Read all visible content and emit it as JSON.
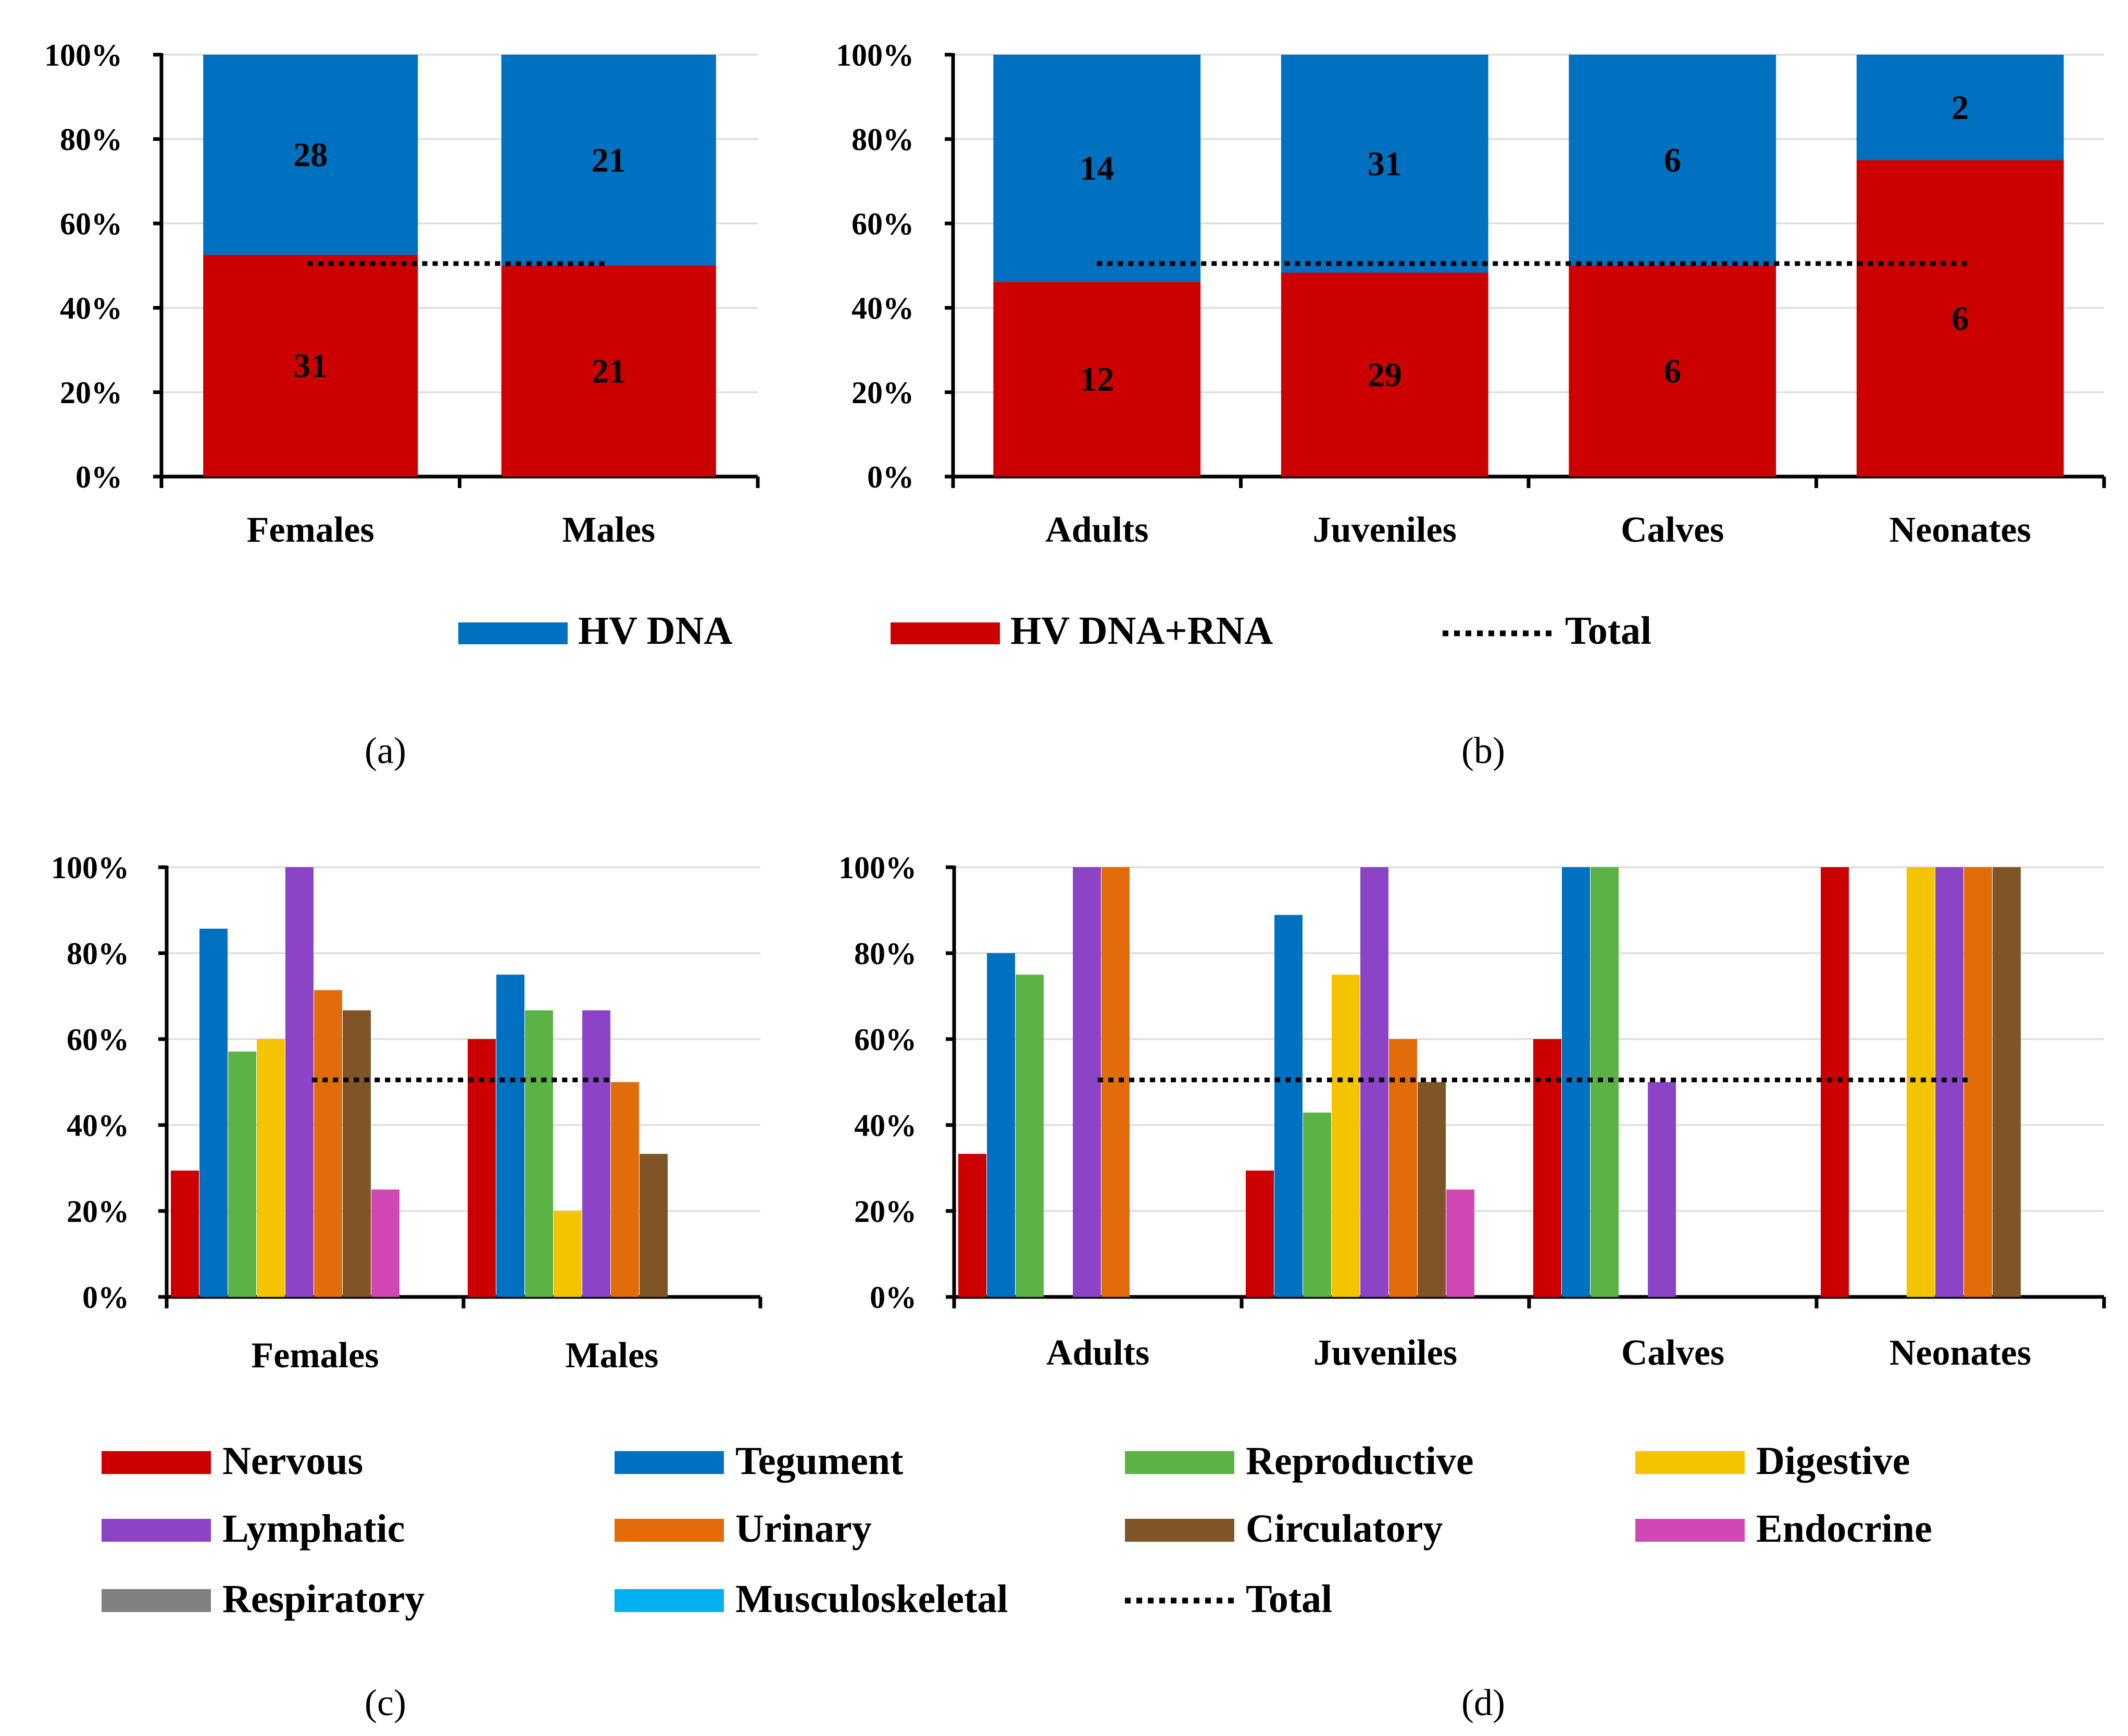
{
  "colors": {
    "hv_dna": "#0070C0",
    "hv_dna_rna": "#CC0000",
    "Nervous": "#CC0000",
    "Tegument": "#0070C0",
    "Reproductive": "#5BB346",
    "Digestive": "#F5C400",
    "Lymphatic": "#8B44C6",
    "Urinary": "#E36C0A",
    "Circulatory": "#7F5427",
    "Endocrine": "#D148B4",
    "Respiratory": "#808080",
    "Musculoskeletal": "#00B0F0",
    "Total": "#000000"
  },
  "chart_data": [
    {
      "panel": "(a)",
      "type": "bar",
      "stacked": true,
      "percent": true,
      "categories": [
        "Females",
        "Males"
      ],
      "series": [
        {
          "name": "HV DNA+RNA",
          "values": [
            31,
            21
          ],
          "labels": [
            "31",
            "21"
          ]
        },
        {
          "name": "HV DNA",
          "values": [
            28,
            21
          ],
          "labels": [
            "28",
            "21"
          ]
        }
      ],
      "total_line": 50.5,
      "y_ticks": [
        "0%",
        "20%",
        "40%",
        "60%",
        "80%",
        "100%"
      ],
      "ylim": [
        0,
        100
      ]
    },
    {
      "panel": "(b)",
      "type": "bar",
      "stacked": true,
      "percent": true,
      "categories": [
        "Adults",
        "Juveniles",
        "Calves",
        "Neonates"
      ],
      "series": [
        {
          "name": "HV DNA+RNA",
          "values": [
            12,
            29,
            6,
            6
          ],
          "labels": [
            "12",
            "29",
            "6",
            "6"
          ]
        },
        {
          "name": "HV DNA",
          "values": [
            14,
            31,
            6,
            2
          ],
          "labels": [
            "14",
            "31",
            "6",
            "2"
          ]
        }
      ],
      "total_line": 50.5,
      "y_ticks": [
        "0%",
        "20%",
        "40%",
        "60%",
        "80%",
        "100%"
      ],
      "ylim": [
        0,
        100
      ]
    },
    {
      "panel": "(c)",
      "type": "bar",
      "grouped": true,
      "categories": [
        "Females",
        "Males"
      ],
      "series": [
        {
          "name": "Nervous",
          "values": [
            29.4,
            60
          ]
        },
        {
          "name": "Tegument",
          "values": [
            85.7,
            75
          ]
        },
        {
          "name": "Reproductive",
          "values": [
            57.1,
            66.7
          ]
        },
        {
          "name": "Digestive",
          "values": [
            60,
            20
          ]
        },
        {
          "name": "Lymphatic",
          "values": [
            100,
            66.7
          ]
        },
        {
          "name": "Urinary",
          "values": [
            71.4,
            50
          ]
        },
        {
          "name": "Circulatory",
          "values": [
            66.7,
            33.3
          ]
        },
        {
          "name": "Endocrine",
          "values": [
            25,
            0
          ]
        },
        {
          "name": "Respiratory",
          "values": [
            0,
            0
          ]
        },
        {
          "name": "Musculoskeletal",
          "values": [
            0,
            0
          ]
        }
      ],
      "total_line": 50.5,
      "y_ticks": [
        "0%",
        "20%",
        "40%",
        "60%",
        "80%",
        "100%"
      ],
      "ylim": [
        0,
        100
      ]
    },
    {
      "panel": "(d)",
      "type": "bar",
      "grouped": true,
      "categories": [
        "Adults",
        "Juveniles",
        "Calves",
        "Neonates"
      ],
      "series": [
        {
          "name": "Nervous",
          "values": [
            33.3,
            29.4,
            60,
            100
          ]
        },
        {
          "name": "Tegument",
          "values": [
            80,
            88.9,
            100,
            0
          ]
        },
        {
          "name": "Reproductive",
          "values": [
            75,
            42.9,
            100,
            0
          ]
        },
        {
          "name": "Digestive",
          "values": [
            0,
            75,
            0,
            100
          ]
        },
        {
          "name": "Lymphatic",
          "values": [
            100,
            100,
            50,
            100
          ]
        },
        {
          "name": "Urinary",
          "values": [
            100,
            60,
            0,
            100
          ]
        },
        {
          "name": "Circulatory",
          "values": [
            0,
            50,
            0,
            100
          ]
        },
        {
          "name": "Endocrine",
          "values": [
            0,
            25,
            0,
            0
          ]
        },
        {
          "name": "Respiratory",
          "values": [
            0,
            0,
            0,
            0
          ]
        },
        {
          "name": "Musculoskeletal",
          "values": [
            0,
            0,
            0,
            0
          ]
        }
      ],
      "total_line": 50.5,
      "y_ticks": [
        "0%",
        "20%",
        "40%",
        "60%",
        "80%",
        "100%"
      ],
      "ylim": [
        0,
        100
      ]
    }
  ],
  "legend_top": {
    "hv_dna": "HV DNA",
    "hv_dna_rna": "HV DNA+RNA",
    "total": "Total"
  },
  "legend_bottom": [
    "Nervous",
    "Tegument",
    "Reproductive",
    "Digestive",
    "Lymphatic",
    "Urinary",
    "Circulatory",
    "Endocrine",
    "Respiratory",
    "Musculoskeletal",
    "Total"
  ]
}
